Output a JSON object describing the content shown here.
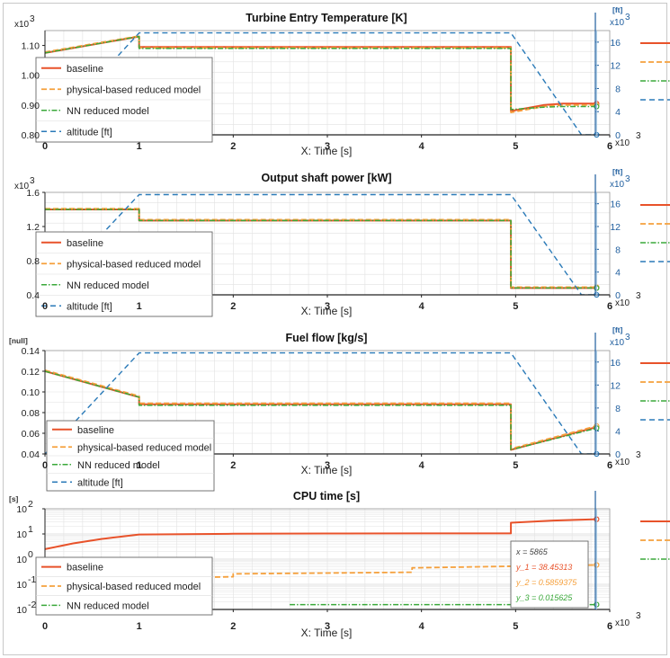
{
  "colors": {
    "baseline": "#e8522a",
    "physical": "#f5a03c",
    "nn": "#3aa83a",
    "altitude": "#2a7ab8",
    "grid": "#e2e2e2",
    "axis_right": "#1f5e9e"
  },
  "x_axis": {
    "label": "X: Time [s]",
    "multiplier": "x10",
    "multiplier_exp": "3",
    "ticks": [
      "0",
      "1",
      "2",
      "3",
      "4",
      "5",
      "6"
    ],
    "range": [
      0,
      6
    ]
  },
  "legend_labels": {
    "baseline": "baseline",
    "physical": "physical-based reduced model",
    "nn": "NN reduced model",
    "altitude": "altitude [ft]"
  },
  "chart_data": [
    {
      "type": "line",
      "title": "Turbine Entry Temperature [K]",
      "y_unit": "",
      "y_multiplier": "x10",
      "y_multiplier_exp": "3",
      "y_ticks": [
        "1.10",
        "1.00",
        "0.90",
        "0.80"
      ],
      "ylim": [
        0.8,
        1.15
      ],
      "y2_unit": "[ft]",
      "y2_multiplier": "x10",
      "y2_multiplier_exp": "3",
      "y2_ticks": [
        "16",
        "12",
        "8",
        "4",
        "0"
      ],
      "y2lim": [
        0,
        18
      ],
      "legend": [
        "baseline",
        "physical-based reduced model",
        "NN reduced model",
        "altitude [ft]"
      ],
      "series": [
        {
          "name": "baseline",
          "x": [
            0,
            1,
            1,
            4.95,
            4.95,
            5.3,
            5.5,
            5.86
          ],
          "y": [
            1.075,
            1.13,
            1.095,
            1.095,
            0.88,
            0.9,
            0.905,
            0.905
          ]
        },
        {
          "name": "physical-based reduced model",
          "x": [
            0,
            1,
            1,
            4.95,
            4.95,
            5.3,
            5.5,
            5.86
          ],
          "y": [
            1.078,
            1.132,
            1.092,
            1.092,
            0.875,
            0.895,
            0.9,
            0.9
          ]
        },
        {
          "name": "NN reduced model",
          "x": [
            0,
            1,
            1,
            4.95,
            4.95,
            5.3,
            5.5,
            5.86
          ],
          "y": [
            1.075,
            1.13,
            1.09,
            1.09,
            0.885,
            0.893,
            0.895,
            0.895
          ]
        },
        {
          "name": "altitude [ft]",
          "axis": "right",
          "x": [
            0,
            1,
            4.95,
            5.7,
            5.86
          ],
          "y": [
            0,
            17.6,
            17.6,
            0,
            0
          ]
        }
      ]
    },
    {
      "type": "line",
      "title": "Output shaft power [kW]",
      "y_unit": "",
      "y_multiplier": "x10",
      "y_multiplier_exp": "3",
      "y_ticks": [
        "1.6",
        "1.2",
        "0.8",
        "0.4"
      ],
      "ylim": [
        0.4,
        1.6
      ],
      "y2_unit": "[ft]",
      "y2_multiplier": "x10",
      "y2_multiplier_exp": "3",
      "y2_ticks": [
        "16",
        "12",
        "8",
        "4",
        "0"
      ],
      "y2lim": [
        0,
        18
      ],
      "legend": [
        "baseline",
        "physical-based reduced model",
        "NN reduced model",
        "altitude [ft]"
      ],
      "series": [
        {
          "name": "baseline",
          "x": [
            0,
            1,
            1,
            4.95,
            4.95,
            5.86
          ],
          "y": [
            1.4,
            1.4,
            1.27,
            1.27,
            0.48,
            0.48
          ]
        },
        {
          "name": "physical-based reduced model",
          "x": [
            0,
            1,
            1,
            4.95,
            4.95,
            5.86
          ],
          "y": [
            1.41,
            1.41,
            1.28,
            1.28,
            0.49,
            0.49
          ]
        },
        {
          "name": "NN reduced model",
          "x": [
            0,
            1,
            1,
            4.95,
            4.95,
            5.86
          ],
          "y": [
            1.4,
            1.4,
            1.27,
            1.27,
            0.48,
            0.48
          ]
        },
        {
          "name": "altitude [ft]",
          "axis": "right",
          "x": [
            0,
            1,
            4.95,
            5.7,
            5.86
          ],
          "y": [
            0,
            17.6,
            17.6,
            0,
            0
          ]
        }
      ]
    },
    {
      "type": "line",
      "title": "Fuel flow [kg/s]",
      "y_unit": "[null]",
      "y_multiplier": "",
      "y_multiplier_exp": "",
      "y_ticks": [
        "0.14",
        "0.12",
        "0.10",
        "0.08",
        "0.06",
        "0.04"
      ],
      "ylim": [
        0.04,
        0.14
      ],
      "y2_unit": "[ft]",
      "y2_multiplier": "x10",
      "y2_multiplier_exp": "3",
      "y2_ticks": [
        "16",
        "12",
        "8",
        "4",
        "0"
      ],
      "y2lim": [
        0,
        18
      ],
      "legend": [
        "baseline",
        "physical-based reduced model",
        "NN reduced model",
        "altitude [ft]"
      ],
      "series": [
        {
          "name": "baseline",
          "x": [
            0,
            1,
            1,
            4.95,
            4.95,
            5.86
          ],
          "y": [
            0.12,
            0.095,
            0.088,
            0.088,
            0.044,
            0.066
          ]
        },
        {
          "name": "physical-based reduced model",
          "x": [
            0,
            1,
            1,
            4.95,
            4.95,
            5.86
          ],
          "y": [
            0.121,
            0.096,
            0.089,
            0.089,
            0.045,
            0.067
          ]
        },
        {
          "name": "NN reduced model",
          "x": [
            0,
            1,
            1,
            4.95,
            4.95,
            5.86
          ],
          "y": [
            0.12,
            0.095,
            0.087,
            0.087,
            0.044,
            0.065
          ]
        },
        {
          "name": "altitude [ft]",
          "axis": "right",
          "x": [
            0,
            1,
            4.95,
            5.7,
            5.86
          ],
          "y": [
            0,
            17.6,
            17.6,
            0,
            0
          ]
        }
      ]
    },
    {
      "type": "line",
      "title": "CPU time [s]",
      "y_unit": "[s]",
      "y_scale": "log",
      "y_multiplier": "",
      "y_multiplier_exp": "",
      "y_ticks": [
        "10^2",
        "10^1",
        "10^0",
        "10^-1",
        "10^-2"
      ],
      "ylim": [
        0.01,
        100
      ],
      "legend": [
        "baseline",
        "physical-based reduced model",
        "NN reduced model"
      ],
      "series": [
        {
          "name": "baseline",
          "x": [
            0,
            0.3,
            0.6,
            1,
            2,
            3,
            4,
            4.95,
            4.95,
            5.4,
            5.86
          ],
          "y": [
            2.5,
            4.2,
            6.3,
            9.5,
            10.2,
            10.4,
            10.5,
            10.5,
            28,
            34,
            38.45313
          ]
        },
        {
          "name": "physical-based reduced model",
          "x": [
            0,
            2,
            2,
            3.9,
            3.9,
            5.86
          ],
          "y": [
            0.15,
            0.2,
            0.26,
            0.3,
            0.45,
            0.5859375
          ]
        },
        {
          "name": "NN reduced model",
          "x": [
            2.6,
            5.86
          ],
          "y": [
            0.015625,
            0.015625
          ]
        }
      ],
      "tooltip": {
        "x": "x     = 5865",
        "y1": "y_1 = 38.45313",
        "y2": "y_2 = 0.5859375",
        "y3": "y_3 = 0.015625"
      }
    }
  ]
}
